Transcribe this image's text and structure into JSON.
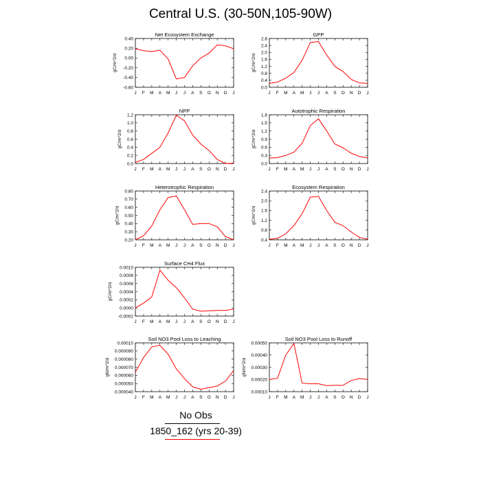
{
  "title": "Central U.S. (30-50N,105-90W)",
  "legend": {
    "label_black": "No Obs",
    "label_red": "1850_162 (yrs 20-39)",
    "line_color_black": "#000000",
    "line_color_red": "#ff0000"
  },
  "line_color": "#ff0000",
  "months": [
    "J",
    "F",
    "M",
    "A",
    "M",
    "J",
    "J",
    "A",
    "S",
    "O",
    "N",
    "D",
    "J"
  ],
  "chart_data": [
    {
      "type": "line",
      "title": "Net Ecosystem Exchange",
      "ylabel": "gC/m^2/d",
      "ylim": [
        -0.6,
        0.4
      ],
      "yticks": [
        0.4,
        0.2,
        0.0,
        -0.2,
        -0.4,
        -0.6
      ],
      "ytick_labels": [
        "0.40",
        "0.20",
        "0.00",
        "-0.20",
        "-0.40",
        "-0.60"
      ],
      "values": [
        0.19,
        0.15,
        0.13,
        0.16,
        -0.02,
        -0.43,
        -0.4,
        -0.16,
        0.0,
        0.1,
        0.27,
        0.25,
        0.19
      ]
    },
    {
      "type": "line",
      "title": "GPP",
      "ylabel": "gC/m^2/d",
      "ylim": [
        0.0,
        2.8
      ],
      "yticks": [
        2.8,
        2.4,
        2.0,
        1.6,
        1.2,
        0.8,
        0.4,
        0.0
      ],
      "ytick_labels": [
        "2.8",
        "2.4",
        "2.0",
        "1.6",
        "1.2",
        "0.8",
        "0.4",
        "0.0"
      ],
      "values": [
        0.22,
        0.3,
        0.52,
        0.85,
        1.55,
        2.57,
        2.62,
        1.85,
        1.2,
        0.9,
        0.45,
        0.25,
        0.22
      ]
    },
    {
      "type": "line",
      "title": "NPP",
      "ylabel": "gC/m^2/d",
      "ylim": [
        0.0,
        1.2
      ],
      "yticks": [
        1.2,
        1.0,
        0.8,
        0.6,
        0.4,
        0.2,
        0.0
      ],
      "ytick_labels": [
        "1.2",
        "1.0",
        "0.8",
        "0.6",
        "0.4",
        "0.2",
        "0.0"
      ],
      "values": [
        0.03,
        0.1,
        0.25,
        0.4,
        0.75,
        1.19,
        1.05,
        0.7,
        0.48,
        0.32,
        0.1,
        0.0,
        0.01
      ]
    },
    {
      "type": "line",
      "title": "Autotrophic Respiration",
      "ylabel": "gC/m^2/d",
      "ylim": [
        0.0,
        1.8
      ],
      "yticks": [
        1.8,
        1.5,
        1.2,
        0.9,
        0.6,
        0.3,
        0.0
      ],
      "ytick_labels": [
        "1.8",
        "1.5",
        "1.2",
        "0.9",
        "0.6",
        "0.3",
        "0.0"
      ],
      "values": [
        0.2,
        0.22,
        0.3,
        0.42,
        0.75,
        1.4,
        1.65,
        1.2,
        0.72,
        0.58,
        0.38,
        0.26,
        0.21
      ]
    },
    {
      "type": "line",
      "title": "Heterotrophic Respiration",
      "ylabel": "gC/m^2/d",
      "ylim": [
        0.2,
        0.8
      ],
      "yticks": [
        0.8,
        0.7,
        0.6,
        0.5,
        0.4,
        0.3,
        0.2
      ],
      "ytick_labels": [
        "0.80",
        "0.70",
        "0.60",
        "0.50",
        "0.40",
        "0.30",
        "0.20"
      ],
      "values": [
        0.2,
        0.25,
        0.37,
        0.57,
        0.72,
        0.74,
        0.57,
        0.39,
        0.4,
        0.4,
        0.36,
        0.24,
        0.2
      ]
    },
    {
      "type": "line",
      "title": "Ecosystem Respiration",
      "ylabel": "gC/m^2/d",
      "ylim": [
        0.4,
        2.4
      ],
      "yticks": [
        2.4,
        2.0,
        1.6,
        1.2,
        0.8,
        0.4
      ],
      "ytick_labels": [
        "2.4",
        "2.0",
        "1.6",
        "1.2",
        "0.8",
        "0.4"
      ],
      "values": [
        0.42,
        0.46,
        0.65,
        0.98,
        1.47,
        2.15,
        2.18,
        1.6,
        1.12,
        0.98,
        0.72,
        0.5,
        0.42
      ]
    },
    {
      "type": "line",
      "title": "Surface CH4 Flux",
      "ylabel": "gC/m^2/d",
      "ylim": [
        -0.0002,
        0.001
      ],
      "yticks": [
        0.001,
        0.0008,
        0.0006,
        0.0004,
        0.0002,
        0.0,
        -0.0002
      ],
      "ytick_labels": [
        "0.0010",
        "0.0008",
        "0.0006",
        "0.0004",
        "0.0002",
        "0.0000",
        "-0.0002"
      ],
      "values": [
        0.0,
        0.00012,
        0.00027,
        0.00093,
        0.00068,
        0.0005,
        0.00025,
        -3e-05,
        -8e-05,
        -7e-05,
        -6e-05,
        -6e-05,
        -3e-05
      ]
    },
    {
      "type": "line",
      "title": "Soil NO3 Pool Loss to Leaching",
      "ylabel": "gN/m^2/d",
      "ylim": [
        4e-05,
        0.0001
      ],
      "yticks": [
        0.0001,
        9e-05,
        8e-05,
        7e-05,
        6e-05,
        5e-05,
        4e-05
      ],
      "ytick_labels": [
        "0.00010",
        "0.000090",
        "0.000080",
        "0.000070",
        "0.000060",
        "0.000050",
        "0.000040"
      ],
      "values": [
        6.4e-05,
        8.2e-05,
        9.5e-05,
        9.7e-05,
        8.6e-05,
        6.8e-05,
        5.6e-05,
        4.6e-05,
        4.3e-05,
        4.5e-05,
        4.7e-05,
        5.3e-05,
        6.6e-05
      ]
    },
    {
      "type": "line",
      "title": "Soil NO3 Pool Loss to Runoff",
      "ylabel": "gN/m^2/d",
      "ylim": [
        0.0001,
        0.0005
      ],
      "yticks": [
        0.0005,
        0.0004,
        0.0003,
        0.0002,
        0.0001
      ],
      "ytick_labels": [
        "0.00050",
        "0.00040",
        "0.00030",
        "0.00020",
        "0.00010"
      ],
      "values": [
        0.0002,
        0.00021,
        0.0004,
        0.000495,
        0.00017,
        0.000165,
        0.000165,
        0.00015,
        0.000152,
        0.000152,
        0.000192,
        0.000208,
        0.0002
      ]
    }
  ]
}
